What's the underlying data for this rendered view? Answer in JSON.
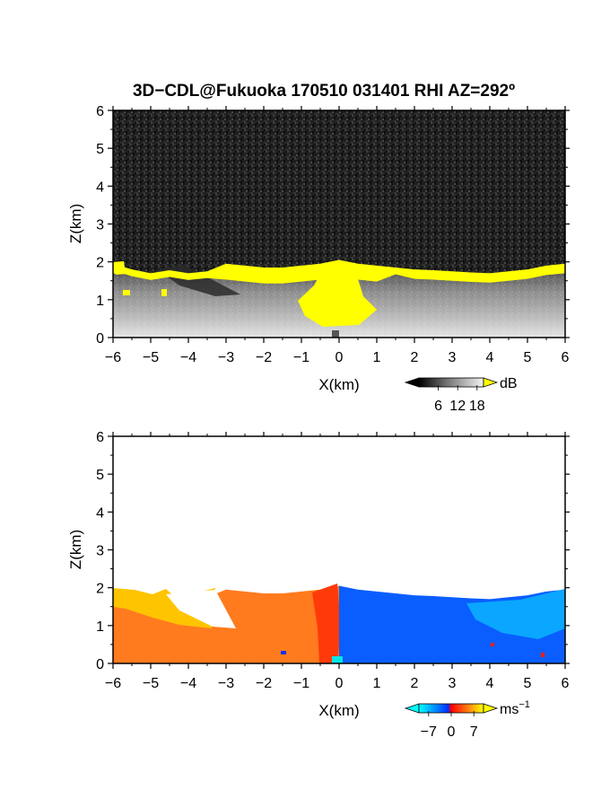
{
  "title": "3D−CDL@Fukuoka 170510 031401 RHI AZ=292º",
  "chart_data": [
    {
      "type": "heatmap",
      "quantity": "reflectivity",
      "xlabel": "X(km)",
      "ylabel": "Z(km)",
      "xlim": [
        -6,
        6
      ],
      "ylim": [
        0,
        6
      ],
      "xticks": [
        "−6",
        "−5",
        "−4",
        "−3",
        "−2",
        "−1",
        "0",
        "1",
        "2",
        "3",
        "4",
        "5",
        "6"
      ],
      "yticks": [
        "0",
        "1",
        "2",
        "3",
        "4",
        "5",
        "6"
      ],
      "colorbar": {
        "unit": "dB",
        "ticks": [
          "6",
          "12",
          "18"
        ],
        "range": [
          0,
          20
        ],
        "saturation_color": "#ffff00"
      },
      "echo_top_km": [
        [
          -6,
          1.95
        ],
        [
          -5.5,
          1.8
        ],
        [
          -5,
          1.7
        ],
        [
          -4.5,
          1.78
        ],
        [
          -4,
          1.7
        ],
        [
          -3.5,
          1.75
        ],
        [
          -3,
          1.95
        ],
        [
          -2.5,
          1.9
        ],
        [
          -2,
          1.85
        ],
        [
          -1.5,
          1.85
        ],
        [
          -1,
          1.9
        ],
        [
          -0.5,
          1.95
        ],
        [
          0,
          2.05
        ],
        [
          0.5,
          1.95
        ],
        [
          1,
          1.9
        ],
        [
          1.5,
          1.85
        ],
        [
          2,
          1.8
        ],
        [
          2.5,
          1.78
        ],
        [
          3,
          1.75
        ],
        [
          3.5,
          1.72
        ],
        [
          4,
          1.7
        ],
        [
          4.5,
          1.75
        ],
        [
          5,
          1.8
        ],
        [
          5.5,
          1.9
        ],
        [
          6,
          1.95
        ]
      ]
    },
    {
      "type": "heatmap",
      "quantity": "doppler velocity",
      "xlabel": "X(km)",
      "ylabel": "Z(km)",
      "xlim": [
        -6,
        6
      ],
      "ylim": [
        0,
        6
      ],
      "xticks": [
        "−6",
        "−5",
        "−4",
        "−3",
        "−2",
        "−1",
        "0",
        "1",
        "2",
        "3",
        "4",
        "5",
        "6"
      ],
      "yticks": [
        "0",
        "1",
        "2",
        "3",
        "4",
        "5",
        "6"
      ],
      "colorbar": {
        "unit": "ms",
        "unit_exponent": "−1",
        "ticks": [
          "−7",
          "0",
          "7"
        ],
        "range": [
          -10,
          10
        ]
      },
      "regions": [
        {
          "x": [
            -6,
            -0.4
          ],
          "velocity_ms": 6,
          "color": "#ff7b1e"
        },
        {
          "x": [
            -0.4,
            0
          ],
          "velocity_ms": 3,
          "color": "#ff3a0a"
        },
        {
          "x": [
            0,
            6
          ],
          "velocity_ms": -6,
          "color": "#0a5eff"
        }
      ]
    }
  ]
}
